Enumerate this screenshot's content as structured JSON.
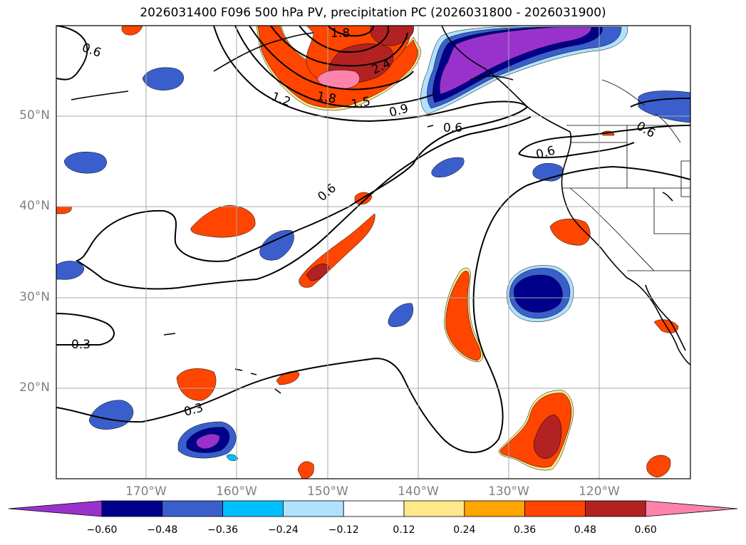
{
  "title": "2026031400 F096 500 hPa PV, precipitation PC (2026031800 - 2026031900)",
  "axes": {
    "lon_labels": [
      "170°W",
      "160°W",
      "150°W",
      "140°W",
      "130°W",
      "120°W"
    ],
    "lat_labels": [
      "50°N",
      "40°N",
      "30°N",
      "20°N"
    ],
    "lon_range": [
      -180,
      -110
    ],
    "lat_range": [
      10,
      60
    ]
  },
  "contour_labels": [
    "0.6",
    "1.8",
    "2.4",
    "1.2",
    "1.8",
    "1.5",
    "0.9",
    "0.6",
    "0.6",
    "0.6",
    "0.6",
    "0.3",
    "0.3"
  ],
  "colorbar": {
    "ticks": [
      "−0.60",
      "−0.48",
      "−0.36",
      "−0.24",
      "−0.12",
      "0.12",
      "0.24",
      "0.36",
      "0.48",
      "0.60"
    ],
    "colors": [
      "#9932cc",
      "#00008b",
      "#3a5fcd",
      "#00bfff",
      "#b0e2ff",
      "#ffffff",
      "#ffe98a",
      "#ffa500",
      "#ff4500",
      "#b22222",
      "#ff82ab"
    ]
  },
  "palette": {
    "purple": "#9932cc",
    "navy": "#00008b",
    "blue": "#3a5fcd",
    "cyan": "#00bfff",
    "lightblue": "#b0e2ff",
    "yellow": "#ffe98a",
    "orange": "#ffa500",
    "redorange": "#ff4500",
    "firebrick": "#b22222",
    "pink": "#ff82ab"
  }
}
